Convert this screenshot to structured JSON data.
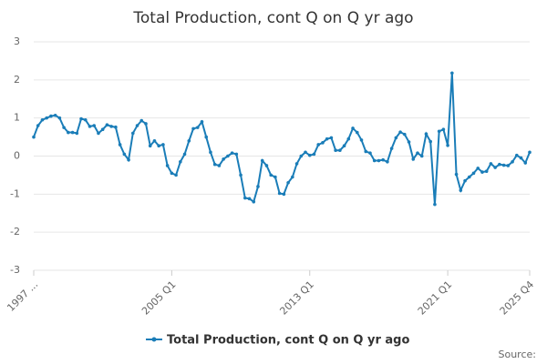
{
  "chart_data": {
    "type": "line",
    "title": "Total Production, cont Q on Q yr ago",
    "categories": [
      "1997 ...",
      null,
      null,
      null,
      null,
      null,
      null,
      null,
      null,
      null,
      null,
      null,
      null,
      null,
      null,
      null,
      null,
      null,
      null,
      null,
      null,
      null,
      null,
      null,
      null,
      null,
      null,
      null,
      null,
      null,
      null,
      null,
      "2005 Q1",
      null,
      null,
      null,
      null,
      null,
      null,
      null,
      null,
      null,
      null,
      null,
      null,
      null,
      null,
      null,
      null,
      null,
      null,
      null,
      null,
      null,
      null,
      null,
      null,
      null,
      null,
      null,
      null,
      null,
      null,
      null,
      "2013 Q1",
      null,
      null,
      null,
      null,
      null,
      null,
      null,
      null,
      null,
      null,
      null,
      null,
      null,
      null,
      null,
      null,
      null,
      null,
      null,
      null,
      null,
      null,
      null,
      null,
      null,
      null,
      null,
      null,
      null,
      null,
      null,
      "2021 Q1",
      null,
      null,
      null,
      null,
      null,
      null,
      null,
      null,
      null,
      null,
      null,
      null,
      null,
      null,
      null,
      null,
      null,
      null,
      "2025 Q4"
    ],
    "series": [
      {
        "name": "Total Production, cont Q on Q yr ago",
        "color": "#1a7db8",
        "values": [
          0.5,
          0.8,
          0.95,
          1.0,
          1.05,
          1.07,
          1.0,
          0.75,
          0.62,
          0.62,
          0.6,
          0.98,
          0.95,
          0.78,
          0.8,
          0.6,
          0.7,
          0.82,
          0.78,
          0.76,
          0.3,
          0.05,
          -0.1,
          0.6,
          0.8,
          0.93,
          0.85,
          0.27,
          0.4,
          0.27,
          0.3,
          -0.25,
          -0.45,
          -0.5,
          -0.15,
          0.05,
          0.4,
          0.72,
          0.75,
          0.9,
          0.5,
          0.1,
          -0.22,
          -0.25,
          -0.08,
          0.0,
          0.08,
          0.05,
          -0.5,
          -1.1,
          -1.12,
          -1.2,
          -0.8,
          -0.12,
          -0.25,
          -0.5,
          -0.55,
          -0.98,
          -1.0,
          -0.7,
          -0.55,
          -0.2,
          0.0,
          0.1,
          0.02,
          0.05,
          0.3,
          0.35,
          0.45,
          0.48,
          0.15,
          0.15,
          0.27,
          0.45,
          0.73,
          0.62,
          0.42,
          0.12,
          0.08,
          -0.12,
          -0.12,
          -0.1,
          -0.15,
          0.2,
          0.48,
          0.63,
          0.57,
          0.37,
          -0.08,
          0.08,
          0.0,
          0.58,
          0.38,
          -1.27,
          0.65,
          0.7,
          0.28,
          2.18,
          -0.48,
          -0.9,
          -0.65,
          -0.55,
          -0.45,
          -0.32,
          -0.42,
          -0.4,
          -0.2,
          -0.3,
          -0.22,
          -0.24,
          -0.25,
          -0.15,
          0.02,
          -0.05,
          -0.18,
          0.1
        ]
      }
    ],
    "ylim": [
      -3,
      3
    ],
    "yticks": [
      -3,
      -2,
      -1,
      0,
      1,
      2,
      3
    ],
    "grid": true,
    "source": "Source:"
  }
}
